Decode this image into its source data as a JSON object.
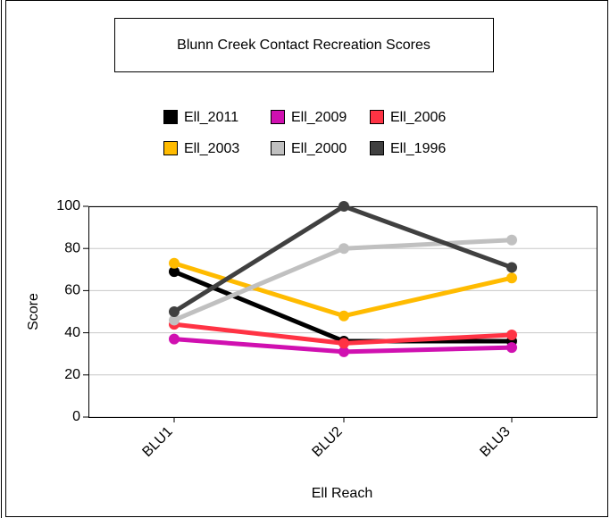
{
  "chart_data": {
    "type": "line",
    "title": "Blunn Creek Contact Recreation Scores",
    "x_label": "Ell Reach",
    "y_label": "Score",
    "categories": [
      "BLU1",
      "BLU2",
      "BLU3"
    ],
    "series": [
      {
        "name": "Ell_2011",
        "color": "#000000",
        "values": [
          69,
          36,
          36
        ]
      },
      {
        "name": "Ell_2009",
        "color": "#d010b0",
        "values": [
          37,
          31,
          33
        ]
      },
      {
        "name": "Ell_2006",
        "color": "#ff3344",
        "values": [
          44,
          35,
          39
        ]
      },
      {
        "name": "Ell_2003",
        "color": "#ffbb00",
        "values": [
          73,
          48,
          66
        ]
      },
      {
        "name": "Ell_2000",
        "color": "#c0c0c0",
        "values": [
          46,
          80,
          84
        ]
      },
      {
        "name": "Ell_1996",
        "color": "#404040",
        "values": [
          50,
          100,
          71
        ]
      }
    ],
    "ylim": [
      0,
      100
    ],
    "yticks": [
      0,
      20,
      40,
      60,
      80,
      100
    ],
    "grid": true
  }
}
